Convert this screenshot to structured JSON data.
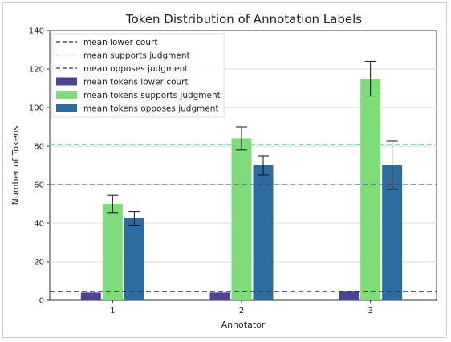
{
  "chart_data": {
    "type": "bar",
    "title": "Token Distribution of Annotation Labels",
    "xlabel": "Annotator",
    "ylabel": "Number of Tokens",
    "categories": [
      "1",
      "2",
      "3"
    ],
    "ylim": [
      0,
      140
    ],
    "yticks": [
      0,
      20,
      40,
      60,
      80,
      100,
      120,
      140
    ],
    "grid": "horizontal",
    "legend_position": "top-left",
    "series": [
      {
        "name": "mean tokens lower court",
        "color": "#4b4496",
        "values": [
          4,
          4,
          4.5
        ],
        "errors": [
          0,
          0,
          0
        ]
      },
      {
        "name": "mean tokens supports judgment",
        "color": "#7fdc7a",
        "values": [
          50,
          84,
          115
        ],
        "errors": [
          4.5,
          6,
          9
        ]
      },
      {
        "name": "mean tokens opposes judgment",
        "color": "#2e6b9e",
        "values": [
          42.5,
          70,
          70
        ],
        "errors": [
          3.5,
          5,
          12.5
        ]
      }
    ],
    "reference_lines": [
      {
        "name": "mean lower court",
        "value": 4.5,
        "color": "#2b2b55",
        "style": "dashed"
      },
      {
        "name": "mean supports judgment",
        "value": 81,
        "color": "#86e48c",
        "style": "dashed"
      },
      {
        "name": "mean opposes judgment",
        "value": 60,
        "color": "#2a3d6e",
        "style": "dashed"
      }
    ]
  }
}
